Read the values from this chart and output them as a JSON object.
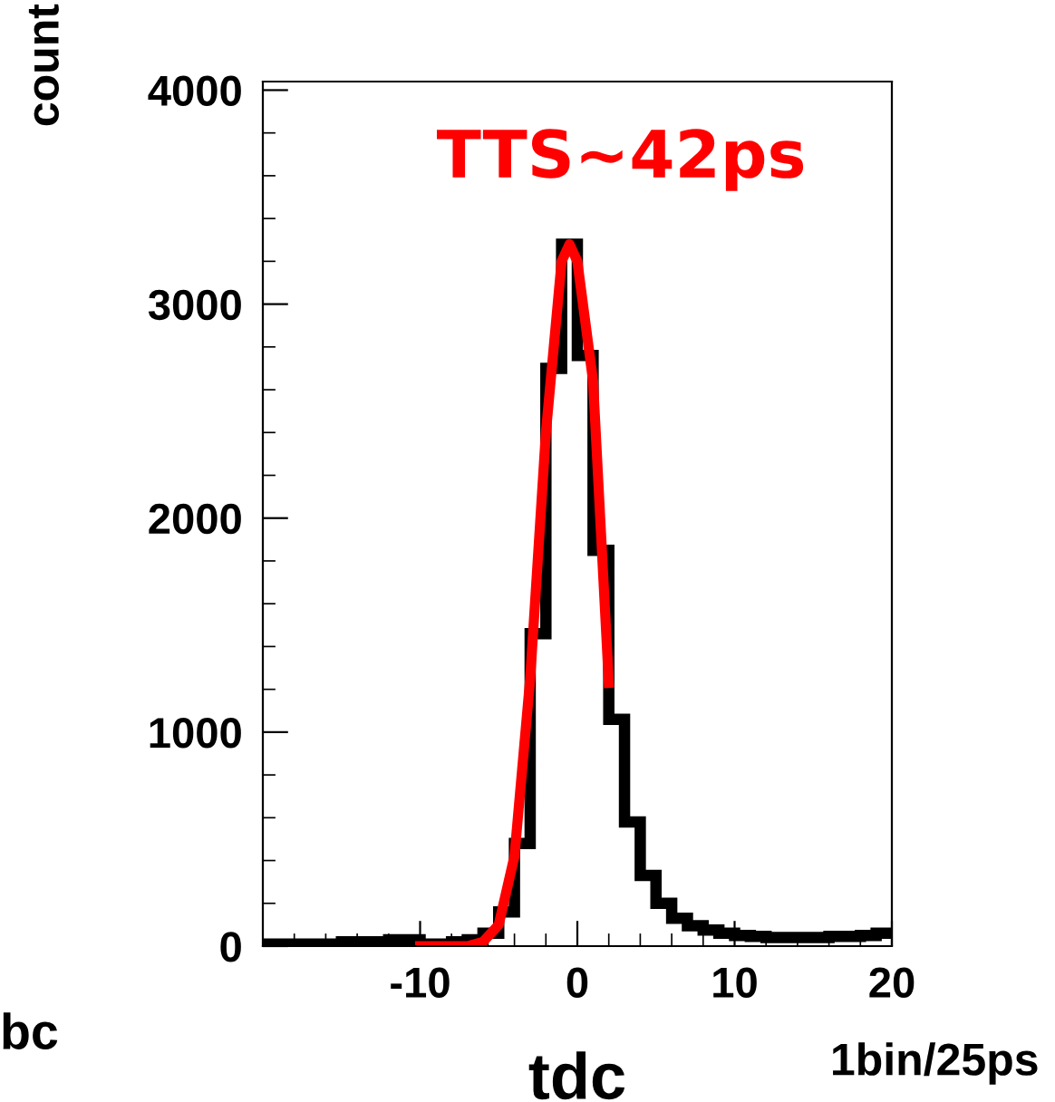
{
  "chart_data": {
    "type": "histogram",
    "xlabel": "tdc",
    "ylabel": "count",
    "bins": [
      -20,
      -19,
      -18,
      -17,
      -16,
      -15,
      -14,
      -13,
      -12,
      -11,
      -10,
      -9,
      -8,
      -7,
      -6,
      -5,
      -4,
      -3,
      -2,
      -1,
      0,
      1,
      2,
      3,
      4,
      5,
      6,
      7,
      8,
      9,
      10,
      11,
      12,
      13,
      14,
      15,
      16,
      17,
      18,
      19,
      20
    ],
    "values": [
      10,
      10,
      10,
      10,
      10,
      20,
      20,
      20,
      30,
      30,
      10,
      10,
      20,
      30,
      60,
      160,
      480,
      1460,
      2700,
      3280,
      2760,
      1850,
      1060,
      580,
      330,
      200,
      130,
      95,
      75,
      60,
      50,
      45,
      40,
      40,
      40,
      40,
      45,
      45,
      50,
      60
    ],
    "color": "#000000",
    "series": [
      {
        "type": "line",
        "color": "#ff0000",
        "x": [
          -10,
          -8,
          -7,
          -6,
          -5,
          -4,
          -3,
          -2,
          -1,
          -0.5,
          0,
          1,
          2
        ],
        "values": [
          0,
          0,
          0,
          20,
          100,
          420,
          1250,
          2400,
          3200,
          3280,
          3200,
          2640,
          1230
        ]
      }
    ],
    "xlim": [
      -20,
      20
    ],
    "xticks": [
      -10,
      0,
      10,
      20
    ],
    "ylim": [
      0,
      4040
    ],
    "yticks": [
      0,
      1000,
      2000,
      3000,
      4000
    ],
    "grid": false,
    "legend": false,
    "annotations": [
      "TTS∼42ps",
      "1bin/25ps",
      "bc"
    ]
  }
}
